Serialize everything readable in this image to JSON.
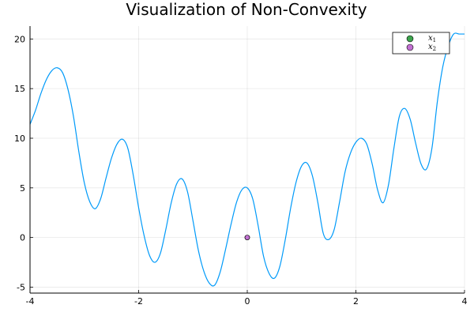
{
  "chart_data": {
    "type": "line",
    "title": "Visualization of Non-Convexity",
    "xlabel": "",
    "ylabel": "",
    "xlim": [
      -4,
      4
    ],
    "ylim": [
      -5.6,
      21.3
    ],
    "x_ticks": [
      -4,
      -2,
      0,
      2,
      4
    ],
    "x_tick_labels": [
      "-4",
      "-2",
      "0",
      "2",
      "4"
    ],
    "y_ticks": [
      -5,
      0,
      5,
      10,
      15,
      20
    ],
    "y_tick_labels": [
      "-5",
      "0",
      "5",
      "10",
      "15",
      "20"
    ],
    "grid": true,
    "legend_position": "top-right",
    "series": [
      {
        "type": "line",
        "color": "#009af9",
        "x": [
          -4.0,
          -3.9,
          -3.8,
          -3.7,
          -3.6,
          -3.5,
          -3.4,
          -3.3,
          -3.2,
          -3.1,
          -3.0,
          -2.9,
          -2.8,
          -2.7,
          -2.6,
          -2.5,
          -2.4,
          -2.3,
          -2.2,
          -2.1,
          -2.0,
          -1.9,
          -1.8,
          -1.7,
          -1.6,
          -1.5,
          -1.4,
          -1.3,
          -1.2,
          -1.1,
          -1.0,
          -0.9,
          -0.8,
          -0.7,
          -0.6,
          -0.5,
          -0.4,
          -0.3,
          -0.2,
          -0.1,
          0.0,
          0.1,
          0.2,
          0.3,
          0.4,
          0.5,
          0.6,
          0.7,
          0.8,
          0.9,
          1.0,
          1.1,
          1.2,
          1.3,
          1.4,
          1.5,
          1.6,
          1.7,
          1.8,
          1.9,
          2.0,
          2.1,
          2.2,
          2.3,
          2.4,
          2.5,
          2.6,
          2.7,
          2.8,
          2.9,
          3.0,
          3.1,
          3.2,
          3.3,
          3.4,
          3.5,
          3.6,
          3.7,
          3.8,
          3.9,
          4.0
        ],
        "y": [
          11.4,
          12.8,
          14.5,
          15.9,
          16.8,
          17.1,
          16.6,
          14.9,
          12.2,
          8.6,
          5.5,
          3.6,
          2.9,
          3.9,
          6.0,
          8.0,
          9.4,
          9.9,
          9.0,
          6.3,
          3.0,
          0.2,
          -1.8,
          -2.5,
          -1.6,
          0.8,
          3.5,
          5.4,
          5.9,
          4.6,
          1.7,
          -1.3,
          -3.4,
          -4.6,
          -4.8,
          -3.5,
          -1.2,
          1.3,
          3.5,
          4.8,
          5.0,
          3.9,
          1.2,
          -1.9,
          -3.6,
          -4.1,
          -2.9,
          -0.2,
          3.0,
          5.6,
          7.2,
          7.5,
          6.2,
          3.5,
          0.4,
          -0.2,
          0.8,
          3.6,
          6.6,
          8.5,
          9.6,
          10.0,
          9.4,
          7.4,
          4.8,
          3.5,
          5.3,
          9.0,
          12.2,
          13.0,
          11.9,
          9.5,
          7.4,
          6.9,
          9.0,
          13.7,
          17.2,
          19.3,
          20.5,
          20.5,
          20.5
        ]
      },
      {
        "type": "scatter",
        "name": "x1",
        "label_main": "x",
        "label_sub": "1",
        "color": "#3da44d",
        "x": [
          0
        ],
        "y": [
          0
        ]
      },
      {
        "type": "scatter",
        "name": "x2",
        "label_main": "x",
        "label_sub": "2",
        "color": "#c271d2",
        "x": [
          0
        ],
        "y": [
          0
        ]
      }
    ]
  }
}
